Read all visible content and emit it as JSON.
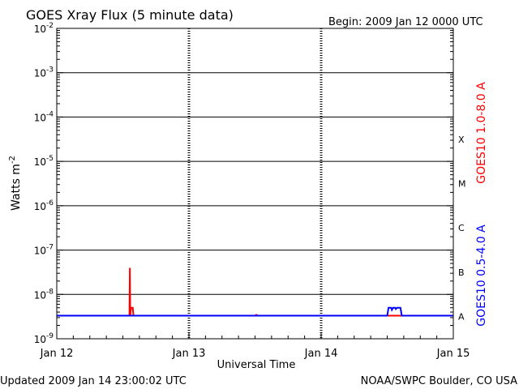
{
  "chart_data": {
    "type": "line",
    "title": "GOES Xray Flux (5 minute data)",
    "begin_text": "Begin:  2009 Jan 12 0000 UTC",
    "xlabel": "Universal Time",
    "ylabel": "Watts m",
    "ylabel_sup": "-2",
    "xlim_days": [
      0,
      3
    ],
    "x_ticks": [
      {
        "day": 0,
        "label": "Jan 12"
      },
      {
        "day": 1,
        "label": "Jan 13"
      },
      {
        "day": 2,
        "label": "Jan 14"
      },
      {
        "day": 3,
        "label": "Jan 15"
      }
    ],
    "y_scale": "log",
    "y_exponents": [
      -2,
      -3,
      -4,
      -5,
      -6,
      -7,
      -8,
      -9
    ],
    "y_tick_base": "10",
    "flare_classes": [
      {
        "label": "X",
        "exponent": -4
      },
      {
        "label": "M",
        "exponent": -5
      },
      {
        "label": "C",
        "exponent": -6
      },
      {
        "label": "B",
        "exponent": -7
      },
      {
        "label": "A",
        "exponent": -8
      }
    ],
    "series": [
      {
        "name": "GOES10 1.0-8.0 A",
        "color": "#ff0000",
        "points": [
          [
            0.0,
            -8.48
          ],
          [
            0.54,
            -8.48
          ],
          [
            0.55,
            -8.48
          ],
          [
            0.553,
            -7.4
          ],
          [
            0.556,
            -8.48
          ],
          [
            0.562,
            -8.3
          ],
          [
            0.575,
            -8.3
          ],
          [
            0.58,
            -8.48
          ],
          [
            1.5,
            -8.48
          ],
          [
            1.51,
            -8.46
          ],
          [
            1.52,
            -8.48
          ],
          [
            3.0,
            -8.48
          ]
        ]
      },
      {
        "name": "GOES10 0.5-4.0 A",
        "color": "#0000ff",
        "points": [
          [
            0.0,
            -8.48
          ],
          [
            2.5,
            -8.48
          ],
          [
            2.51,
            -8.3
          ],
          [
            2.53,
            -8.3
          ],
          [
            2.535,
            -8.35
          ],
          [
            2.545,
            -8.3
          ],
          [
            2.56,
            -8.3
          ],
          [
            2.565,
            -8.33
          ],
          [
            2.575,
            -8.3
          ],
          [
            2.6,
            -8.3
          ],
          [
            2.61,
            -8.48
          ],
          [
            3.0,
            -8.48
          ]
        ]
      }
    ]
  },
  "footer": {
    "updated": "Updated 2009 Jan 14 23:00:02 UTC",
    "credit": "NOAA/SWPC Boulder, CO USA"
  }
}
